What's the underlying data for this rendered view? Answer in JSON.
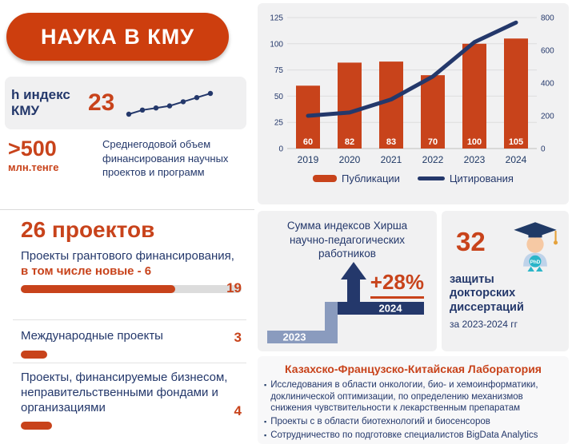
{
  "colors": {
    "accent_orange": "#C8431B",
    "navy": "#24386B",
    "panel_gray": "#F1F1F2",
    "step_light": "#8A9BBE"
  },
  "header": {
    "title": "НАУКА В КМУ"
  },
  "h_index": {
    "label_line1": "h индекс",
    "label_line2": "КМУ",
    "value": "23",
    "spark": [
      13,
      15,
      16,
      17,
      19,
      21,
      23
    ]
  },
  "funding": {
    "value": ">500",
    "unit": "млн.тенге",
    "description": "Среднегодовой объем финансирования научных проектов и программ"
  },
  "chart_data": {
    "type": "bar",
    "categories": [
      "2019",
      "2020",
      "2021",
      "2022",
      "2023",
      "2024"
    ],
    "series": [
      {
        "name": "Публикации",
        "type": "bar",
        "axis": "left",
        "color": "#C8431B",
        "values": [
          60,
          82,
          83,
          70,
          100,
          105
        ]
      },
      {
        "name": "Цитирования",
        "type": "line",
        "axis": "right",
        "color": "#24386B",
        "values": [
          200,
          220,
          300,
          440,
          650,
          770
        ]
      }
    ],
    "left_axis": {
      "min": 0,
      "max": 125,
      "ticks": [
        0,
        25,
        50,
        75,
        100,
        125
      ]
    },
    "right_axis": {
      "min": 0,
      "max": 800,
      "ticks": [
        0,
        200,
        400,
        600,
        800
      ]
    },
    "legend_position": "bottom",
    "grid": true,
    "title": ""
  },
  "projects": {
    "title": "26 проектов",
    "items": [
      {
        "label": "Проекты грантового финансирования,",
        "label_bold": "в том числе новые - 6",
        "value": "19",
        "bar_pct": 70
      },
      {
        "label": "Международные проекты",
        "label_bold": "",
        "value": "3",
        "bar_pct": 12
      },
      {
        "label": "Проекты, финансируемые бизнесом, неправительственными фондами и организациями",
        "label_bold": "",
        "value": "4",
        "bar_pct": 14
      }
    ]
  },
  "hirsch": {
    "title": "Сумма индексов Хирша научно-педагогических работников",
    "delta": "+28%",
    "year_prev": "2023",
    "year_next": "2024"
  },
  "defenses": {
    "value": "32",
    "label": "защиты докторских диссертаций",
    "period": "за 2023-2024 гг"
  },
  "lab": {
    "title": "Казахско-Французско-Китайская Лаборатория",
    "bullets": [
      "Исследования в области онкологии, био- и хемоинформатики, доклинической оптимизации, по определению механизмов снижения чувствительности к лекарственным препаратам",
      "Проекты с в области биотехнологий и биосенсоров",
      "Сотрудничество по подготовке специалистов BigData Analytics"
    ]
  }
}
